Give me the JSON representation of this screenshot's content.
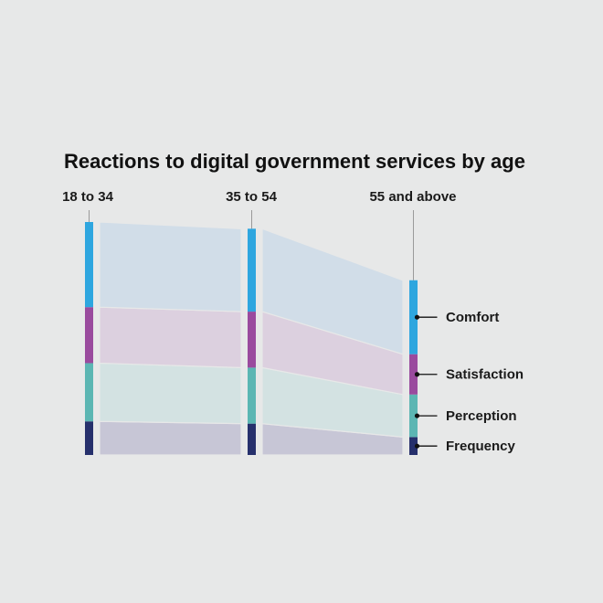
{
  "chart_data": {
    "type": "area",
    "title": "Reactions to digital government services by age",
    "categories": [
      "18 to 34",
      "35 to 54",
      "55 and above"
    ],
    "series": [
      {
        "name": "Frequency",
        "values": [
          15,
          14,
          8
        ],
        "color": "#26306c"
      },
      {
        "name": "Perception",
        "values": [
          26,
          25,
          19
        ],
        "color": "#5cb6b3"
      },
      {
        "name": "Satisfaction",
        "values": [
          25,
          25,
          18
        ],
        "color": "#9a4b9e"
      },
      {
        "name": "Comfort",
        "values": [
          38,
          37,
          33
        ],
        "color": "#2ea6df"
      }
    ],
    "stack_order": "bottom-to-top",
    "ylim": [
      0,
      104
    ],
    "legend": "right",
    "band_colors": [
      "#c7c6d6",
      "#d3e2e2",
      "#dcd0df",
      "#d1dde8"
    ],
    "grid": false
  }
}
